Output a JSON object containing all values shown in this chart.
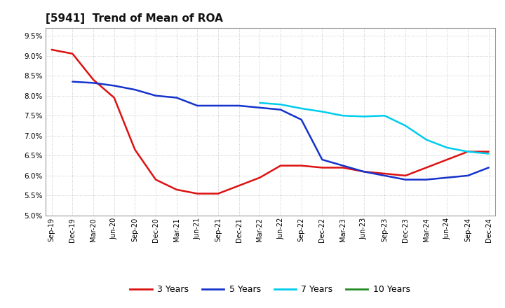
{
  "title": "[5941]  Trend of Mean of ROA",
  "xlabels": [
    "Sep-19",
    "Dec-19",
    "Mar-20",
    "Jun-20",
    "Sep-20",
    "Dec-20",
    "Mar-21",
    "Jun-21",
    "Sep-21",
    "Dec-21",
    "Mar-22",
    "Jun-22",
    "Sep-22",
    "Dec-22",
    "Mar-23",
    "Jun-23",
    "Sep-23",
    "Dec-23",
    "Mar-24",
    "Jun-24",
    "Sep-24",
    "Dec-24"
  ],
  "ylim": [
    0.05,
    0.097
  ],
  "yticks": [
    0.05,
    0.055,
    0.06,
    0.065,
    0.07,
    0.075,
    0.08,
    0.085,
    0.09,
    0.095
  ],
  "series": {
    "3 Years": {
      "color": "#dd1111",
      "linewidth": 1.8,
      "data_x": [
        0,
        1,
        2,
        3,
        4,
        5,
        6,
        7,
        8,
        9,
        10,
        11,
        12,
        13,
        14,
        15,
        16,
        17,
        18,
        19,
        20,
        21
      ],
      "data_y": [
        0.0915,
        0.0905,
        0.084,
        0.0795,
        0.0665,
        0.059,
        0.0565,
        0.0555,
        0.0555,
        0.0575,
        0.0595,
        0.0625,
        0.0625,
        0.062,
        0.062,
        0.061,
        0.0605,
        0.06,
        0.062,
        0.064,
        0.066,
        0.066
      ]
    },
    "5 Years": {
      "color": "#1533cc",
      "linewidth": 1.8,
      "data_x": [
        1,
        2,
        3,
        4,
        5,
        6,
        7,
        8,
        9,
        10,
        11,
        12,
        13,
        14,
        15,
        16,
        17,
        18,
        19,
        20,
        21
      ],
      "data_y": [
        0.0835,
        0.0832,
        0.0825,
        0.0815,
        0.08,
        0.0795,
        0.0775,
        0.0775,
        0.0775,
        0.077,
        0.0765,
        0.074,
        0.064,
        0.0625,
        0.061,
        0.06,
        0.059,
        0.059,
        0.0595,
        0.06,
        0.062
      ]
    },
    "7 Years": {
      "color": "#00ccee",
      "linewidth": 1.8,
      "data_x": [
        10,
        11,
        12,
        13,
        14,
        15,
        16,
        17,
        18,
        19,
        20,
        21
      ],
      "data_y": [
        0.0782,
        0.0778,
        0.0768,
        0.076,
        0.075,
        0.0748,
        0.075,
        0.0725,
        0.069,
        0.067,
        0.066,
        0.0655
      ]
    },
    "10 Years": {
      "color": "#228b22",
      "linewidth": 1.8,
      "data_x": [],
      "data_y": []
    }
  },
  "legend_order": [
    "3 Years",
    "5 Years",
    "7 Years",
    "10 Years"
  ],
  "background_color": "#ffffff",
  "grid_color": "#bbbbbb"
}
